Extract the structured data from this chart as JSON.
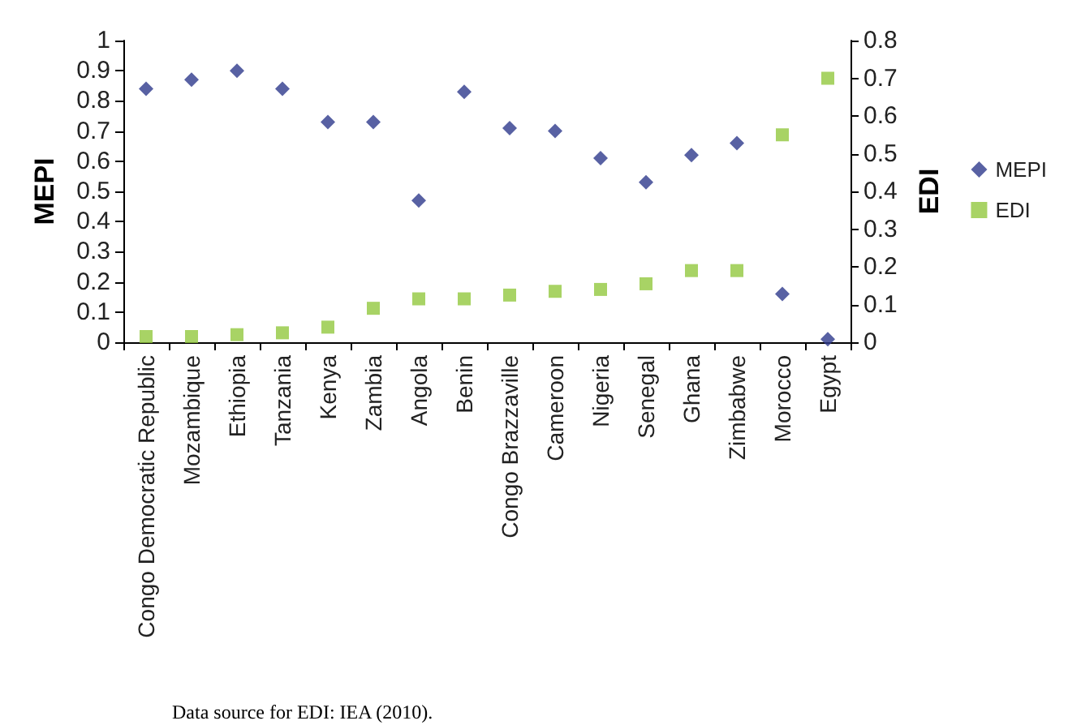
{
  "chart_data": {
    "type": "scatter",
    "ylabel": "MEPI",
    "y2label": "EDI",
    "categories": [
      "Congo Democratic Republic",
      "Mozambique",
      "Ethiopia",
      "Tanzania",
      "Kenya",
      "Zambia",
      "Angola",
      "Benin",
      "Congo Brazzaville",
      "Cameroon",
      "Nigeria",
      "Senegal",
      "Ghana",
      "Zimbabwe",
      "Morocco",
      "Egypt"
    ],
    "series": [
      {
        "name": "MEPI",
        "color": "#2e3a8c",
        "marker": "diamond",
        "values": [
          0.84,
          0.87,
          0.9,
          0.84,
          0.73,
          0.73,
          0.47,
          0.83,
          0.71,
          0.7,
          0.61,
          0.53,
          0.62,
          0.66,
          0.16,
          0.01
        ]
      },
      {
        "name": "EDI",
        "color": "#92c83e",
        "marker": "square",
        "axis": "y2",
        "values": [
          0.015,
          0.015,
          0.02,
          0.025,
          0.04,
          0.09,
          0.115,
          0.115,
          0.125,
          0.135,
          0.14,
          0.155,
          0.19,
          0.19,
          0.55,
          0.7
        ]
      }
    ],
    "ylim": [
      0,
      1
    ],
    "yticks": [
      0,
      0.1,
      0.2,
      0.3,
      0.4,
      0.5,
      0.6,
      0.7,
      0.8,
      0.9,
      1
    ],
    "y2lim": [
      0,
      0.8
    ],
    "y2ticks": [
      0,
      0.1,
      0.2,
      0.3,
      0.4,
      0.5,
      0.6,
      0.7,
      0.8
    ],
    "legend": "right",
    "grid": false,
    "annotations": [
      "Data source for EDI: IEA (2010)."
    ]
  }
}
